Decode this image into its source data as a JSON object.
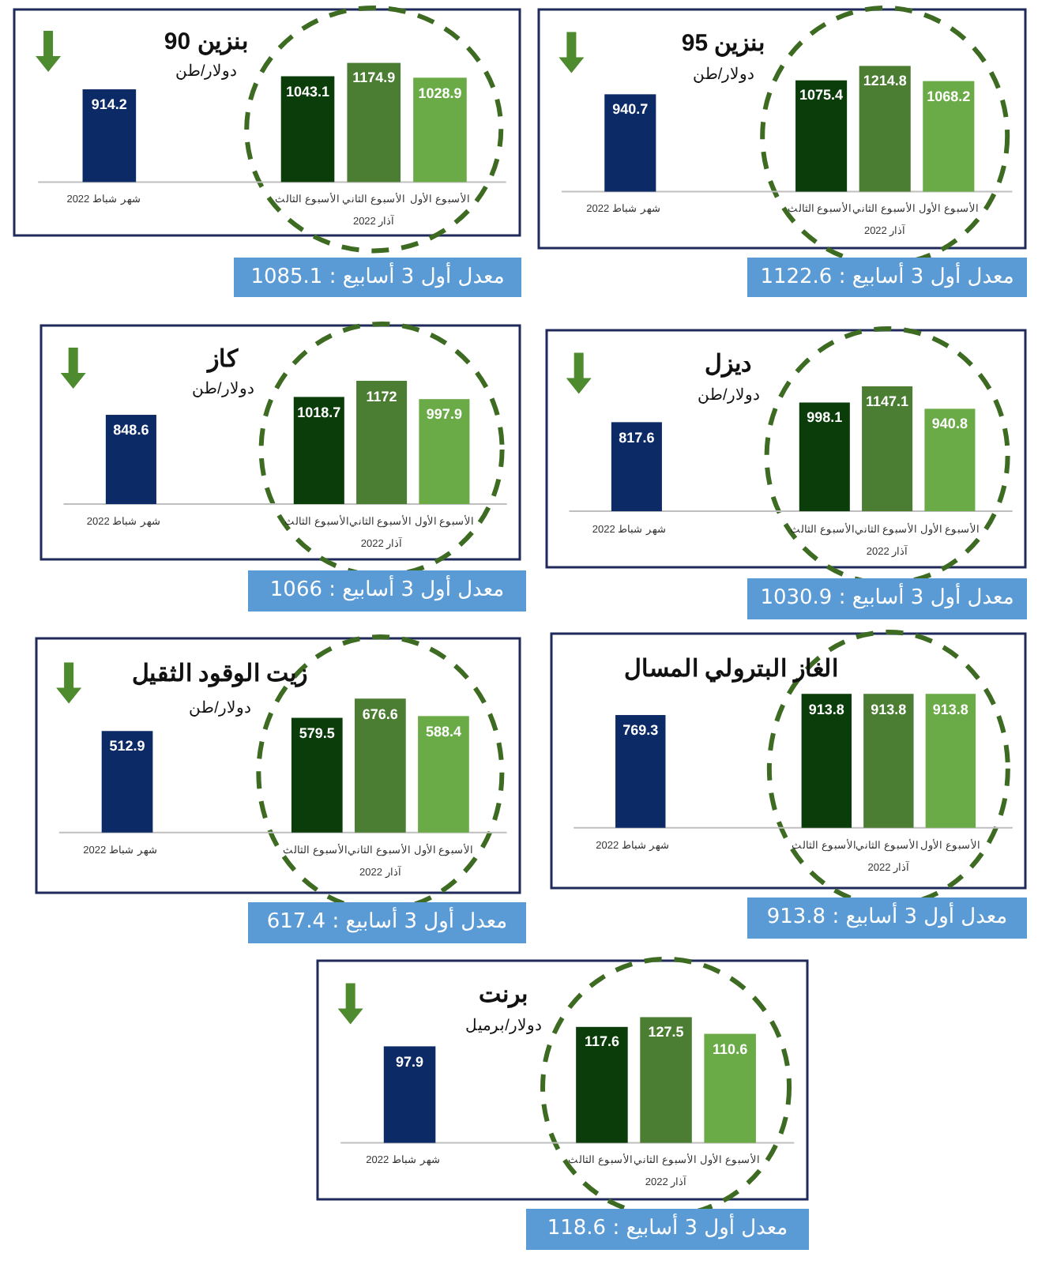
{
  "chart_data": [
    {
      "type": "bar",
      "title": "بنزين 95",
      "subtitle": "دولار/طن",
      "categories": [
        "شهر شباط 2022",
        null,
        null,
        "الأسبوع الثالث",
        "الأسبوع الثاني",
        "الأسبوع الأول"
      ],
      "values": [
        940.7,
        null,
        null,
        1075.4,
        1214.8,
        1068.2
      ],
      "colors": [
        "#0c2a66",
        null,
        null,
        "#0a3d0a",
        "#4b7d32",
        "#6aab47"
      ],
      "data_labels": true,
      "annotations": [
        "آذار 2022",
        "معدل أول 3 أسابيع : 1122.6"
      ]
    },
    {
      "type": "bar",
      "title": "بنزين 90",
      "subtitle": "دولار/طن",
      "categories": [
        "شهر شباط 2022",
        null,
        null,
        "الأسبوع الثالث",
        "الأسبوع الثاني",
        "الأسبوع الأول"
      ],
      "values": [
        914.2,
        null,
        null,
        1043.1,
        1174.9,
        1028.9
      ],
      "colors": [
        "#0c2a66",
        null,
        null,
        "#0a3d0a",
        "#4b7d32",
        "#6aab47"
      ],
      "data_labels": true,
      "annotations": [
        "آذار 2022",
        "معدل أول 3 أسابيع : 1085.1"
      ]
    },
    {
      "type": "bar",
      "title": "ديزل",
      "subtitle": "دولار/طن",
      "categories": [
        "شهر شباط 2022",
        null,
        null,
        "الأسبوع الثالث",
        "الأسبوع الثاني",
        "الأسبوع الأول"
      ],
      "values": [
        817.6,
        null,
        null,
        998.1,
        1147.1,
        940.8
      ],
      "colors": [
        "#0c2a66",
        null,
        null,
        "#0a3d0a",
        "#4b7d32",
        "#6aab47"
      ],
      "data_labels": true,
      "annotations": [
        "آذار 2022",
        "معدل أول 3 أسابيع : 1030.9"
      ]
    },
    {
      "type": "bar",
      "title": "كاز",
      "subtitle": "دولار/طن",
      "categories": [
        "شهر شباط 2022",
        null,
        null,
        "الأسبوع الثالث",
        "الأسبوع الثاني",
        "الأسبوع الأول"
      ],
      "values": [
        848.6,
        null,
        null,
        1018.7,
        1172,
        997.9
      ],
      "colors": [
        "#0c2a66",
        null,
        null,
        "#0a3d0a",
        "#4b7d32",
        "#6aab47"
      ],
      "data_labels": true,
      "annotations": [
        "آذار 2022",
        "معدل أول 3 أسابيع : 1066"
      ]
    },
    {
      "type": "bar",
      "title": "الغاز البترولي المسال",
      "categories": [
        "شهر شباط 2022",
        null,
        null,
        "الأسبوع الثالث",
        "الأسبوع الثاني",
        "الأسبوع الأول"
      ],
      "values": [
        769.3,
        null,
        null,
        913.8,
        913.8,
        913.8
      ],
      "colors": [
        "#0c2a66",
        null,
        null,
        "#0a3d0a",
        "#4b7d32",
        "#6aab47"
      ],
      "data_labels": true,
      "annotations": [
        "آذار 2022",
        "معدل أول 3 أسابيع : 913.8"
      ]
    },
    {
      "type": "bar",
      "title": "زيت الوقود الثقيل",
      "subtitle": "دولار/طن",
      "categories": [
        "شهر شباط 2022",
        null,
        null,
        "الأسبوع الثالث",
        "الأسبوع الثاني",
        "الأسبوع الأول"
      ],
      "values": [
        512.9,
        null,
        null,
        579.5,
        676.6,
        588.4
      ],
      "colors": [
        "#0c2a66",
        null,
        null,
        "#0a3d0a",
        "#4b7d32",
        "#6aab47"
      ],
      "data_labels": true,
      "annotations": [
        "آذار 2022",
        "معدل أول 3 أسابيع : 617.4"
      ]
    },
    {
      "type": "bar",
      "title": "برنت",
      "subtitle": "دولار/برميل",
      "categories": [
        "شهر شباط 2022",
        null,
        null,
        "الأسبوع الثالث",
        "الأسبوع الثاني",
        "الأسبوع الأول"
      ],
      "values": [
        97.9,
        null,
        null,
        117.6,
        127.5,
        110.6
      ],
      "colors": [
        "#0c2a66",
        null,
        null,
        "#0a3d0a",
        "#4b7d32",
        "#6aab47"
      ],
      "data_labels": true,
      "annotations": [
        "آذار 2022",
        "معدل أول 3 أسابيع : 118.6"
      ]
    }
  ]
}
